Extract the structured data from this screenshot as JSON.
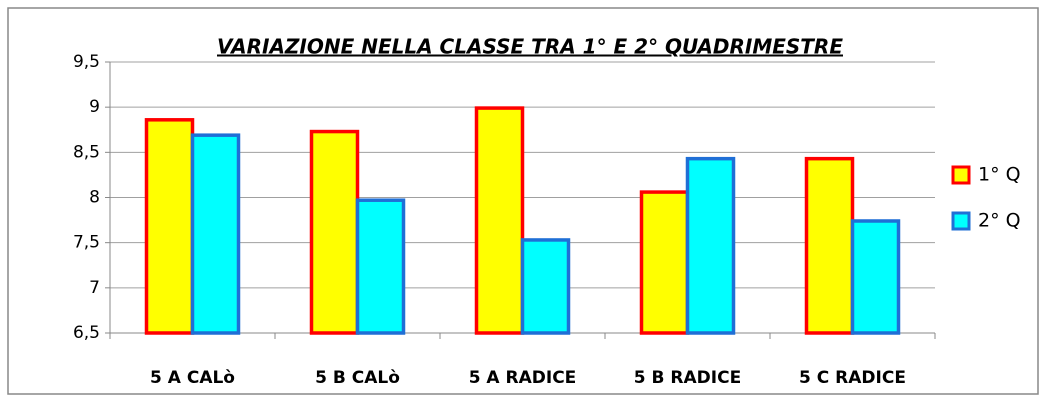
{
  "chart_data": {
    "type": "bar",
    "title": "VARIAZIONE  NELLA CLASSE TRA 1° E 2° QUADRIMESTRE",
    "categories": [
      "5 A CALò",
      "5 B CALò",
      "5 A RADICE",
      "5 B RADICE",
      "5 C RADICE"
    ],
    "series": [
      {
        "name": "1° Q",
        "color": "#ffff00",
        "edgecolor": "#ff0000",
        "values": [
          8.86,
          8.73,
          8.99,
          8.06,
          8.43
        ]
      },
      {
        "name": "2° Q",
        "color": "#00ffff",
        "edgecolor": "#1f6fd6",
        "values": [
          8.69,
          7.97,
          7.53,
          8.43,
          7.74
        ]
      }
    ],
    "ylim": [
      6.5,
      9.5
    ],
    "yticks": [
      {
        "value": 6.5,
        "label": "6,5"
      },
      7,
      {
        "value": 7.5,
        "label": "7,5"
      },
      8,
      {
        "value": 8.5,
        "label": "8,5"
      },
      9,
      {
        "value": 9.5,
        "label": "9,5"
      }
    ],
    "grid": true,
    "legend": "right"
  }
}
